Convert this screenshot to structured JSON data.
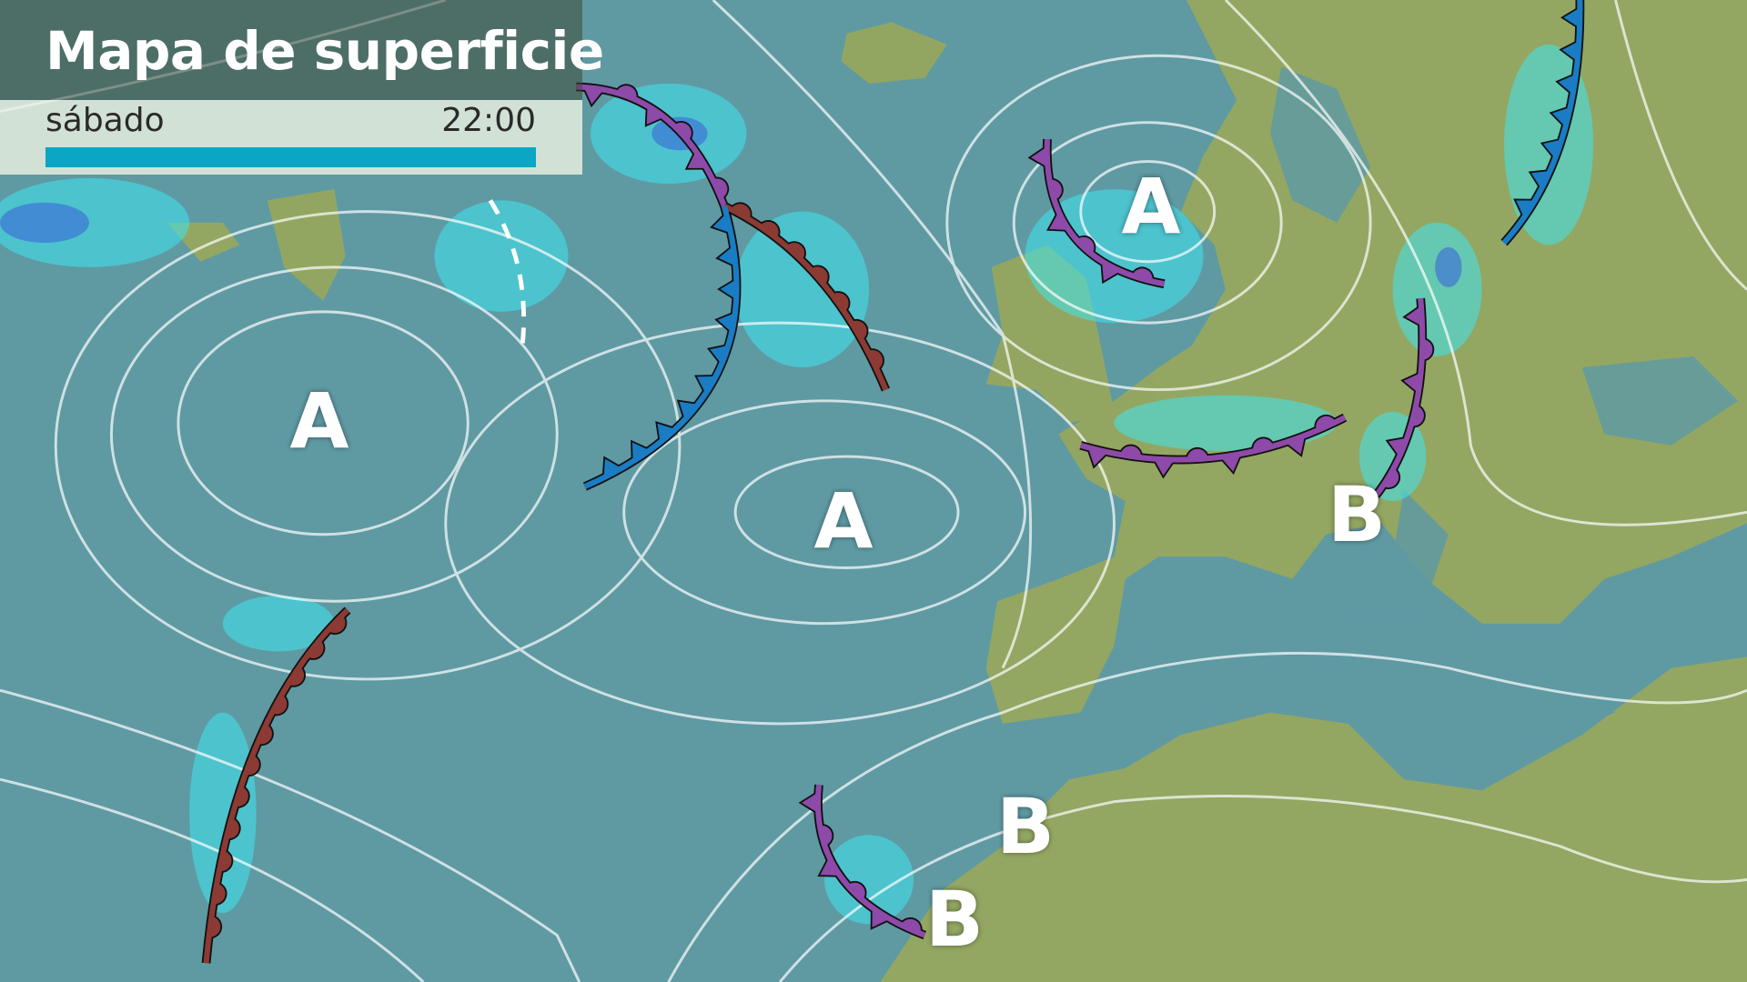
{
  "header": {
    "title": "Mapa de superficie",
    "day": "sábado",
    "time": "22:00",
    "progress_percent": 100,
    "progress_color": "#0aa6c4"
  },
  "pressure_centers": [
    {
      "label": "A",
      "type": "high"
    },
    {
      "label": "A",
      "type": "high"
    },
    {
      "label": "A",
      "type": "high"
    },
    {
      "label": "B",
      "type": "low"
    },
    {
      "label": "B",
      "type": "low"
    },
    {
      "label": "B",
      "type": "low"
    }
  ],
  "fronts": [
    {
      "type": "occluded",
      "color": "#8e4aa8"
    },
    {
      "type": "warm",
      "color": "#8c3a34"
    },
    {
      "type": "cold",
      "color": "#1a7cc4"
    },
    {
      "type": "occluded",
      "color": "#8e4aa8"
    },
    {
      "type": "occluded",
      "color": "#8e4aa8"
    },
    {
      "type": "occluded",
      "color": "#8e4aa8"
    },
    {
      "type": "cold",
      "color": "#1a7cc4"
    },
    {
      "type": "warm",
      "color": "#8c3a34"
    },
    {
      "type": "occluded",
      "color": "#8e4aa8"
    },
    {
      "type": "trough",
      "color": "#ffffff"
    }
  ],
  "colors": {
    "sea": "#5f9aa3",
    "land": "#98a85c",
    "precip": "#3ee6f0",
    "isobar": "#ffffff"
  }
}
